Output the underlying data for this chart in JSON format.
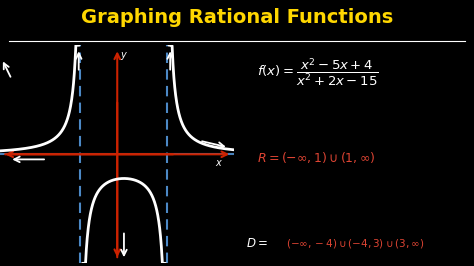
{
  "background_color": "#000000",
  "title": "Graphing Rational Functions",
  "title_color": "#FFD700",
  "title_fontsize": 14,
  "underline_color": "#FFFFFF",
  "axis_color": "#CC2200",
  "asymptote_color": "#5599DD",
  "curve_color": "#FFFFFF",
  "formula_color": "#FFFFFF",
  "range_color": "#DD4433",
  "domain_color": "#DD4433",
  "domain_label_color": "#FFFFFF",
  "graph_xlim": [
    -3.5,
    3.5
  ],
  "graph_ylim": [
    -3.2,
    3.2
  ],
  "va1": -1.1,
  "va2": 1.5,
  "figsize": [
    4.74,
    2.66
  ],
  "dpi": 100
}
